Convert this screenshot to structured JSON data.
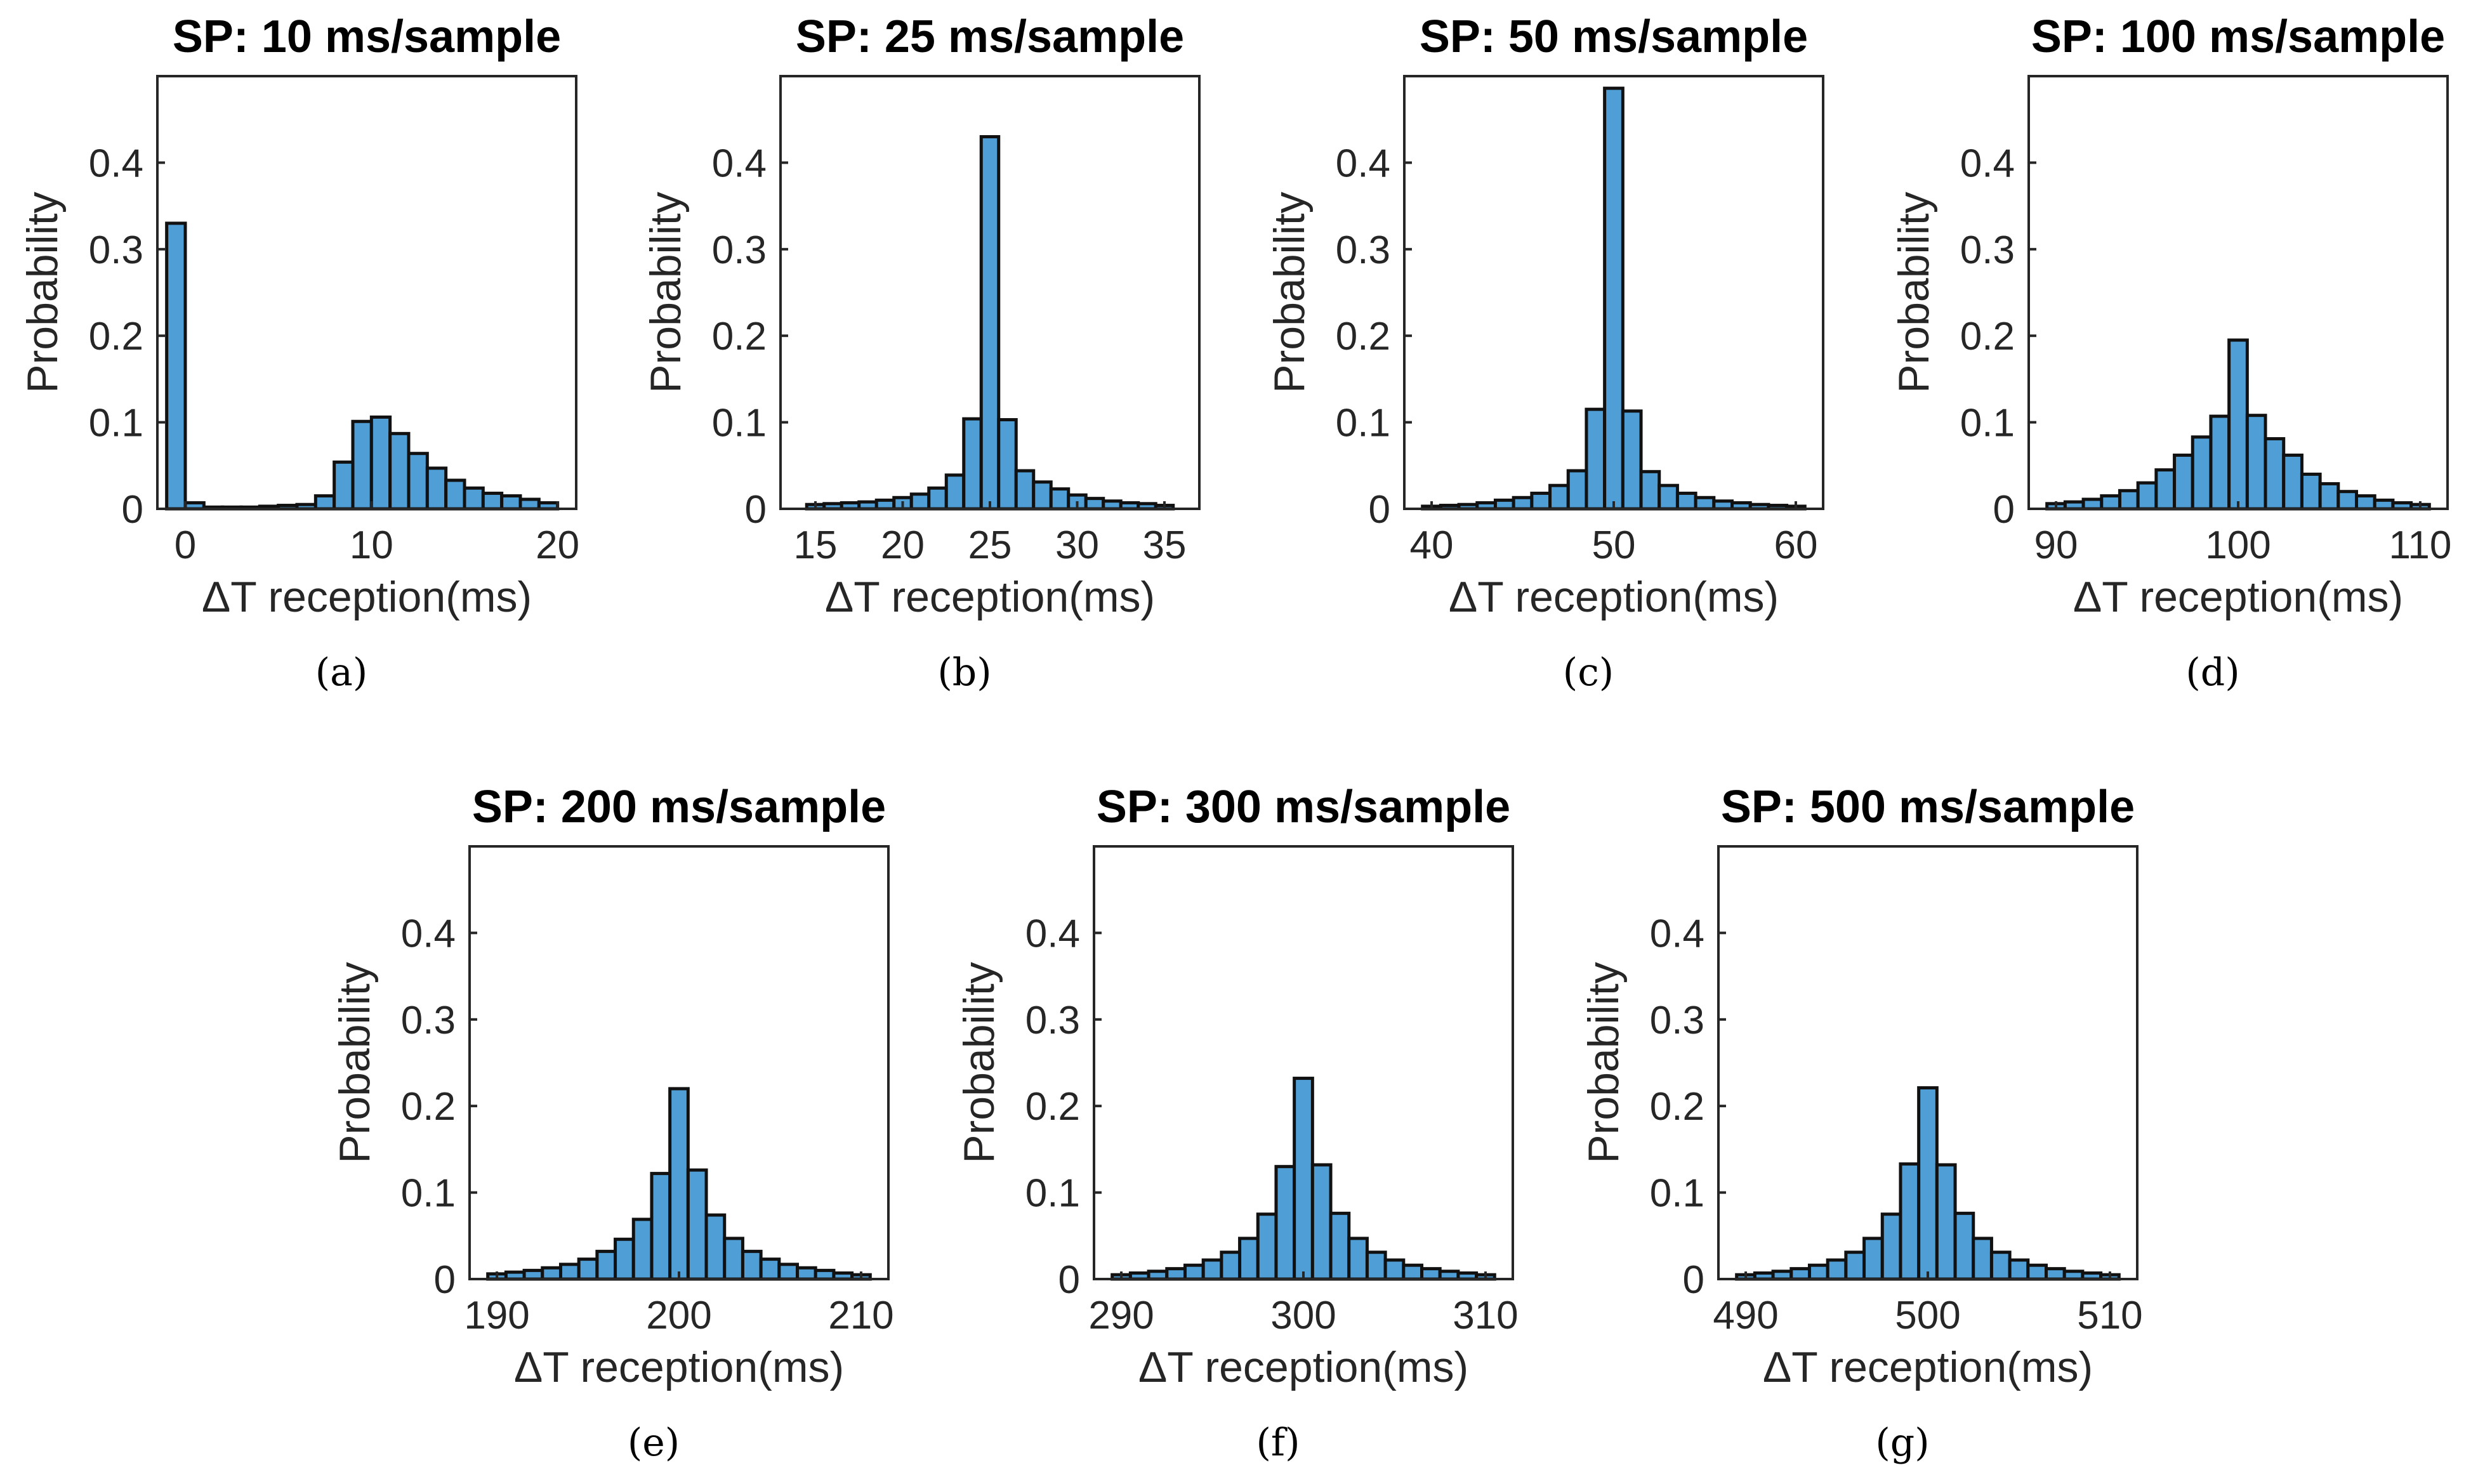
{
  "chart_data": [
    {
      "type": "bar",
      "panel": "(a)",
      "title": "SP: 10 ms/sample",
      "xlabel": "ΔT reception(ms)",
      "ylabel": "Probability",
      "xlim": [
        -1.5,
        21
      ],
      "ylim": [
        0,
        0.5
      ],
      "xticks": [
        0,
        10,
        20
      ],
      "yticks": [
        0,
        0.1,
        0.2,
        0.3,
        0.4
      ],
      "bin_width": 1,
      "bins": [
        -0.5,
        0.5,
        1.5,
        2.5,
        3.5,
        4.5,
        5.5,
        6.5,
        7.5,
        8.5,
        9.5,
        10.5,
        11.5,
        12.5,
        13.5,
        14.5,
        15.5,
        16.5,
        17.5,
        18.5,
        19.5
      ],
      "values": [
        0.33,
        0.007,
        0.002,
        0.002,
        0.002,
        0.003,
        0.004,
        0.005,
        0.015,
        0.054,
        0.101,
        0.106,
        0.087,
        0.064,
        0.047,
        0.033,
        0.024,
        0.018,
        0.015,
        0.011,
        0.007
      ]
    },
    {
      "type": "bar",
      "panel": "(b)",
      "title": "SP: 25 ms/sample",
      "xlabel": "ΔT reception(ms)",
      "ylabel": "Probability",
      "xlim": [
        13,
        37
      ],
      "ylim": [
        0,
        0.5
      ],
      "xticks": [
        15,
        20,
        25,
        30,
        35
      ],
      "yticks": [
        0,
        0.1,
        0.2,
        0.3,
        0.4
      ],
      "bin_width": 1,
      "bins": [
        15,
        16,
        17,
        18,
        19,
        20,
        21,
        22,
        23,
        24,
        25,
        26,
        27,
        28,
        29,
        30,
        31,
        32,
        33,
        34,
        35
      ],
      "values": [
        0.005,
        0.006,
        0.007,
        0.008,
        0.01,
        0.013,
        0.017,
        0.024,
        0.039,
        0.104,
        0.43,
        0.103,
        0.044,
        0.031,
        0.023,
        0.016,
        0.012,
        0.009,
        0.007,
        0.006,
        0.004
      ]
    },
    {
      "type": "bar",
      "panel": "(c)",
      "title": "SP: 50 ms/sample",
      "xlabel": "ΔT reception(ms)",
      "ylabel": "Probability",
      "xlim": [
        38.5,
        61.5
      ],
      "ylim": [
        0,
        0.5
      ],
      "xticks": [
        40,
        50,
        60
      ],
      "yticks": [
        0,
        0.1,
        0.2,
        0.3,
        0.4
      ],
      "bin_width": 1,
      "bins": [
        40,
        41,
        42,
        43,
        44,
        45,
        46,
        47,
        48,
        49,
        50,
        51,
        52,
        53,
        54,
        55,
        56,
        57,
        58,
        59,
        60
      ],
      "values": [
        0.003,
        0.004,
        0.005,
        0.007,
        0.01,
        0.013,
        0.018,
        0.027,
        0.044,
        0.115,
        0.486,
        0.113,
        0.043,
        0.027,
        0.018,
        0.013,
        0.009,
        0.007,
        0.005,
        0.004,
        0.003
      ]
    },
    {
      "type": "bar",
      "panel": "(d)",
      "title": "SP: 100 ms/sample",
      "xlabel": "ΔT reception(ms)",
      "ylabel": "Probability",
      "xlim": [
        88.5,
        111.5
      ],
      "ylim": [
        0,
        0.5
      ],
      "xticks": [
        90,
        100,
        110
      ],
      "yticks": [
        0,
        0.1,
        0.2,
        0.3,
        0.4
      ],
      "bin_width": 1,
      "bins": [
        90,
        91,
        92,
        93,
        94,
        95,
        96,
        97,
        98,
        99,
        100,
        101,
        102,
        103,
        104,
        105,
        106,
        107,
        108,
        109,
        110
      ],
      "values": [
        0.006,
        0.008,
        0.011,
        0.015,
        0.021,
        0.03,
        0.045,
        0.062,
        0.083,
        0.107,
        0.195,
        0.108,
        0.081,
        0.062,
        0.04,
        0.029,
        0.02,
        0.015,
        0.01,
        0.007,
        0.005
      ]
    },
    {
      "type": "bar",
      "panel": "(e)",
      "title": "SP: 200 ms/sample",
      "xlabel": "ΔT reception(ms)",
      "ylabel": "Probability",
      "xlim": [
        188.5,
        211.5
      ],
      "ylim": [
        0,
        0.5
      ],
      "xticks": [
        190,
        200,
        210
      ],
      "yticks": [
        0,
        0.1,
        0.2,
        0.3,
        0.4
      ],
      "bin_width": 1,
      "bins": [
        190,
        191,
        192,
        193,
        194,
        195,
        196,
        197,
        198,
        199,
        200,
        201,
        202,
        203,
        204,
        205,
        206,
        207,
        208,
        209,
        210
      ],
      "values": [
        0.006,
        0.008,
        0.01,
        0.013,
        0.017,
        0.023,
        0.032,
        0.046,
        0.069,
        0.122,
        0.22,
        0.126,
        0.074,
        0.047,
        0.032,
        0.023,
        0.017,
        0.013,
        0.01,
        0.007,
        0.005
      ]
    },
    {
      "type": "bar",
      "panel": "(f)",
      "title": "SP: 300 ms/sample",
      "xlabel": "ΔT reception(ms)",
      "ylabel": "Probability",
      "xlim": [
        288.5,
        311.5
      ],
      "ylim": [
        0,
        0.5
      ],
      "xticks": [
        290,
        300,
        310
      ],
      "yticks": [
        0,
        0.1,
        0.2,
        0.3,
        0.4
      ],
      "bin_width": 1,
      "bins": [
        290,
        291,
        292,
        293,
        294,
        295,
        296,
        297,
        298,
        299,
        300,
        301,
        302,
        303,
        304,
        305,
        306,
        307,
        308,
        309,
        310
      ],
      "values": [
        0.005,
        0.007,
        0.009,
        0.012,
        0.016,
        0.022,
        0.031,
        0.047,
        0.075,
        0.13,
        0.232,
        0.132,
        0.076,
        0.047,
        0.031,
        0.022,
        0.016,
        0.012,
        0.009,
        0.007,
        0.005
      ]
    },
    {
      "type": "bar",
      "panel": "(g)",
      "title": "SP: 500 ms/sample",
      "xlabel": "ΔT reception(ms)",
      "ylabel": "Probability",
      "xlim": [
        488.5,
        511.5
      ],
      "ylim": [
        0,
        0.5
      ],
      "xticks": [
        490,
        500,
        510
      ],
      "yticks": [
        0,
        0.1,
        0.2,
        0.3,
        0.4
      ],
      "bin_width": 1,
      "bins": [
        490,
        491,
        492,
        493,
        494,
        495,
        496,
        497,
        498,
        499,
        500,
        501,
        502,
        503,
        504,
        505,
        506,
        507,
        508,
        509,
        510
      ],
      "values": [
        0.005,
        0.007,
        0.009,
        0.012,
        0.016,
        0.022,
        0.031,
        0.047,
        0.075,
        0.133,
        0.221,
        0.132,
        0.076,
        0.047,
        0.031,
        0.022,
        0.016,
        0.012,
        0.009,
        0.007,
        0.005
      ]
    }
  ],
  "colors": {
    "bar_fill": "#4f9fd6",
    "bar_edge": "#111111",
    "axis": "#262626"
  }
}
